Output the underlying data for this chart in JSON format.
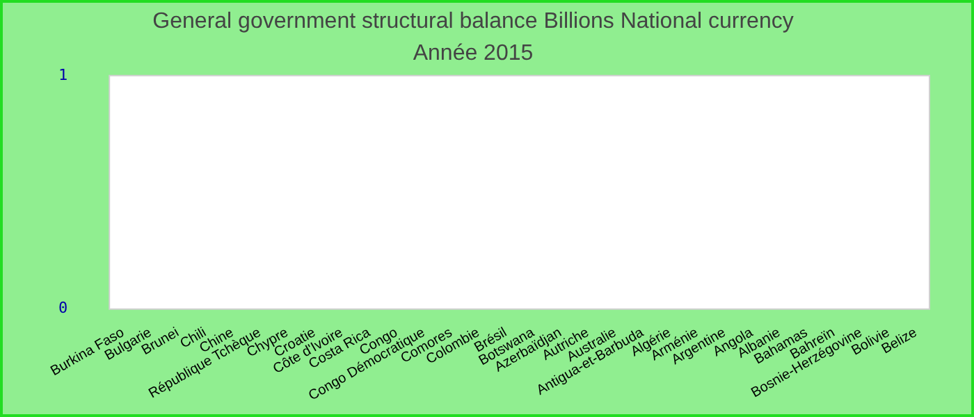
{
  "chart_data": {
    "type": "bar",
    "title": "General government structural balance Billions National currency",
    "subtitle": "Année 2015",
    "categories": [
      "Burkina Faso",
      "Bulgarie",
      "Brunei",
      "Chili",
      "Chine",
      "République Tchèque",
      "Chypre",
      "Croatie",
      "Côte d'Ivoire",
      "Costa Rica",
      "Congo",
      "Congo Démocratique",
      "Comores",
      "Colombie",
      "Brésil",
      "Botswana",
      "Azerbaïdjan",
      "Autriche",
      "Australie",
      "Antigua-et-Barbuda",
      "Algérie",
      "Arménie",
      "Argentine",
      "Angola",
      "Albanie",
      "Bahamas",
      "Bahreïn",
      "Bosnie-Herzégovine",
      "Bolivie",
      "Belize"
    ],
    "values": [
      0,
      0,
      0,
      0,
      0,
      0,
      0,
      0,
      0,
      0,
      0,
      0,
      0,
      0,
      0,
      0,
      0,
      0,
      0,
      0,
      0,
      0,
      0,
      0,
      0,
      0,
      0,
      0,
      0,
      0
    ],
    "ylim": [
      0,
      1
    ],
    "yticks": [
      0,
      1
    ],
    "grid": false
  }
}
